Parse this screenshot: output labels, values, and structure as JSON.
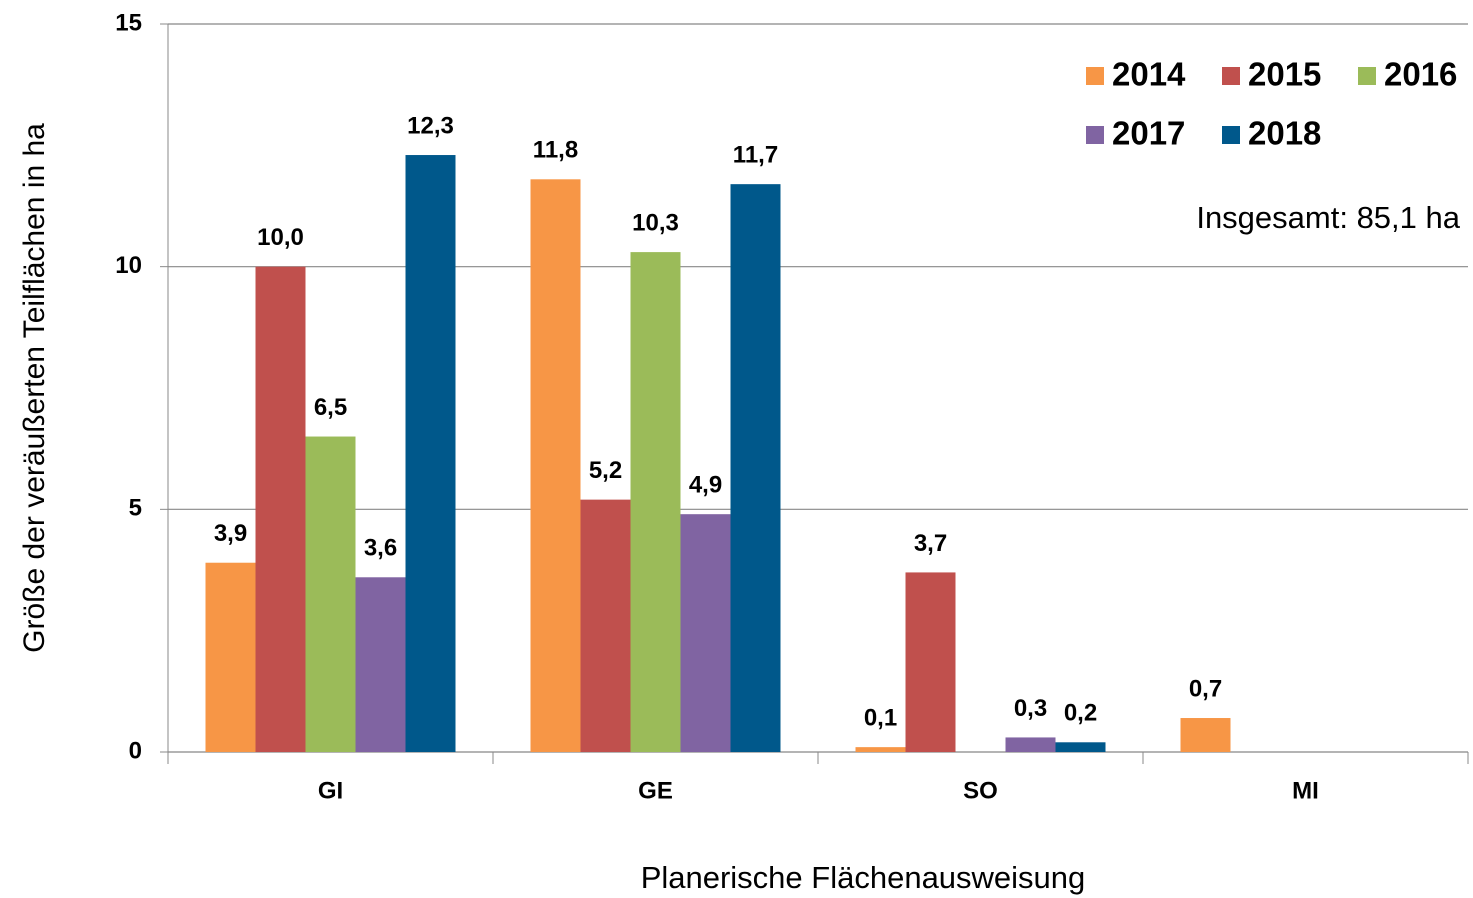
{
  "chart_data": {
    "type": "bar",
    "annotation": "Insgesamt: 85,1 ha",
    "x_label": "Planerische Flächenausweisung",
    "y_label": "Größe der veräußerten Teilflächen in ha",
    "categories": [
      "GI",
      "GE",
      "SO",
      "MI"
    ],
    "series": [
      {
        "name": "2014",
        "color": "#f79646",
        "values": [
          3.9,
          11.8,
          0.1,
          0.7
        ],
        "value_labels": [
          "3,9",
          "11,8",
          "0,1",
          "0,7"
        ]
      },
      {
        "name": "2015",
        "color": "#c0504d",
        "values": [
          10.0,
          5.2,
          3.7,
          null
        ],
        "value_labels": [
          "10,0",
          "5,2",
          "3,7",
          null
        ]
      },
      {
        "name": "2016",
        "color": "#9bbb59",
        "values": [
          6.5,
          10.3,
          null,
          null
        ],
        "value_labels": [
          "6,5",
          "10,3",
          null,
          null
        ]
      },
      {
        "name": "2017",
        "color": "#8064a2",
        "values": [
          3.6,
          4.9,
          0.3,
          null
        ],
        "value_labels": [
          "3,6",
          "4,9",
          "0,3",
          null
        ]
      },
      {
        "name": "2018",
        "color": "#00588b",
        "values": [
          12.3,
          11.7,
          0.2,
          null
        ],
        "value_labels": [
          "12,3",
          "11,7",
          "0,2",
          null
        ]
      }
    ],
    "ylim": [
      0,
      15
    ],
    "yticks": [
      0,
      5,
      10,
      15
    ],
    "grid": true,
    "legend": "top-right"
  }
}
